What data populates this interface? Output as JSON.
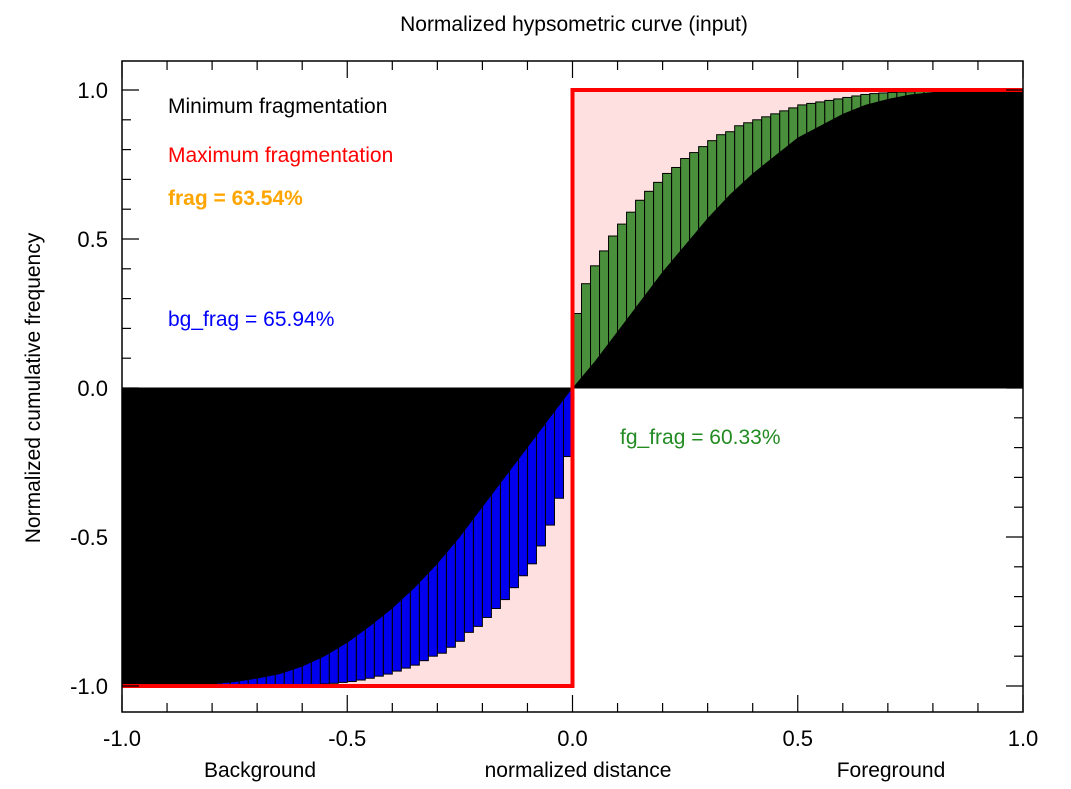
{
  "chart_data": {
    "type": "bar",
    "title": "Normalized hypsometric curve (input)",
    "xlabel": "normalized distance",
    "ylabel": "Normalized cumulative frequency",
    "x_end_labels": {
      "left": "Background",
      "right": "Foreground"
    },
    "xlim": [
      -1.0,
      1.0
    ],
    "ylim": [
      -1.0,
      1.0
    ],
    "xticks": [
      "-1.0",
      "-0.5",
      "0.0",
      "0.5",
      "1.0"
    ],
    "yticks": [
      "-1.0",
      "-0.5",
      "0.0",
      "0.5",
      "1.0"
    ],
    "grid": false,
    "legend": [
      {
        "label": "Minimum fragmentation",
        "color": "#000000"
      },
      {
        "label": "Maximum fragmentation",
        "color": "#ff0000"
      }
    ],
    "annotations": {
      "frag": {
        "text": "frag = 63.54%",
        "color": "#ffa500"
      },
      "bg_frag": {
        "text": "bg_frag = 65.94%",
        "color": "#0000ff"
      },
      "fg_frag": {
        "text": "fg_frag = 60.33%",
        "color": "#228b22"
      }
    },
    "series": [
      {
        "name": "fg",
        "color": "#4a8f3c",
        "bar_width": 0.02,
        "x": [
          0.0,
          0.02,
          0.04,
          0.06,
          0.08,
          0.1,
          0.12,
          0.14,
          0.16,
          0.18,
          0.2,
          0.22,
          0.24,
          0.26,
          0.28,
          0.3,
          0.32,
          0.34,
          0.36,
          0.38,
          0.4,
          0.42,
          0.44,
          0.46,
          0.48,
          0.5,
          0.52,
          0.54,
          0.56,
          0.58,
          0.6,
          0.62,
          0.64,
          0.66,
          0.68,
          0.7,
          0.72,
          0.74,
          0.76,
          0.78,
          0.8,
          0.82,
          0.84,
          0.86,
          0.88,
          0.9,
          0.92,
          0.94,
          0.96,
          0.98
        ],
        "values": [
          0.25,
          0.35,
          0.41,
          0.46,
          0.51,
          0.55,
          0.59,
          0.63,
          0.66,
          0.69,
          0.72,
          0.74,
          0.77,
          0.79,
          0.81,
          0.83,
          0.85,
          0.86,
          0.88,
          0.89,
          0.9,
          0.91,
          0.92,
          0.93,
          0.94,
          0.95,
          0.955,
          0.96,
          0.965,
          0.97,
          0.975,
          0.98,
          0.985,
          0.988,
          0.99,
          0.992,
          0.993,
          0.994,
          0.995,
          0.996,
          0.997,
          0.997,
          0.998,
          0.998,
          0.999,
          0.999,
          0.999,
          1.0,
          1.0,
          1.0
        ]
      },
      {
        "name": "bg",
        "color": "#0000ee",
        "bar_width": 0.02,
        "x": [
          -0.02,
          -0.04,
          -0.06,
          -0.08,
          -0.1,
          -0.12,
          -0.14,
          -0.16,
          -0.18,
          -0.2,
          -0.22,
          -0.24,
          -0.26,
          -0.28,
          -0.3,
          -0.32,
          -0.34,
          -0.36,
          -0.38,
          -0.4,
          -0.42,
          -0.44,
          -0.46,
          -0.48,
          -0.5,
          -0.52,
          -0.54,
          -0.56,
          -0.58,
          -0.6,
          -0.62,
          -0.64,
          -0.66,
          -0.68,
          -0.7,
          -0.72,
          -0.74,
          -0.76,
          -0.78,
          -0.8,
          -0.82,
          -0.84,
          -0.86,
          -0.88,
          -0.9,
          -0.92,
          -0.94,
          -0.96,
          -0.98,
          -1.0
        ],
        "values": [
          -0.23,
          -0.37,
          -0.46,
          -0.53,
          -0.59,
          -0.63,
          -0.67,
          -0.71,
          -0.74,
          -0.77,
          -0.8,
          -0.82,
          -0.85,
          -0.87,
          -0.89,
          -0.9,
          -0.915,
          -0.93,
          -0.94,
          -0.95,
          -0.96,
          -0.967,
          -0.974,
          -0.98,
          -0.985,
          -0.988,
          -0.991,
          -0.993,
          -0.995,
          -0.996,
          -0.997,
          -0.998,
          -0.998,
          -0.999,
          -0.999,
          -0.999,
          -1.0,
          -1.0,
          -1.0,
          -1.0,
          -1.0,
          -1.0,
          -1.0,
          -1.0,
          -1.0,
          -1.0,
          -1.0,
          -1.0,
          -1.0,
          -1.0
        ]
      },
      {
        "name": "minimum_fragmentation_curve",
        "color": "#000000",
        "curve_fg": {
          "x": [
            0.0,
            0.05,
            0.1,
            0.15,
            0.2,
            0.25,
            0.3,
            0.35,
            0.4,
            0.45,
            0.5,
            0.55,
            0.6,
            0.65,
            0.7,
            0.75,
            0.8,
            0.85,
            0.9,
            0.95,
            1.0
          ],
          "y": [
            0.0,
            0.09,
            0.19,
            0.29,
            0.39,
            0.48,
            0.57,
            0.65,
            0.72,
            0.78,
            0.84,
            0.88,
            0.92,
            0.95,
            0.97,
            0.985,
            0.993,
            0.997,
            0.999,
            1.0,
            1.0
          ]
        },
        "curve_bg": {
          "x": [
            0.0,
            -0.05,
            -0.1,
            -0.15,
            -0.2,
            -0.25,
            -0.3,
            -0.35,
            -0.4,
            -0.45,
            -0.5,
            -0.55,
            -0.6,
            -0.65,
            -0.7,
            -0.75,
            -0.8,
            -0.85,
            -0.9,
            -0.95,
            -1.0
          ],
          "y": [
            0.0,
            -0.1,
            -0.2,
            -0.3,
            -0.4,
            -0.5,
            -0.59,
            -0.67,
            -0.74,
            -0.8,
            -0.855,
            -0.9,
            -0.935,
            -0.96,
            -0.975,
            -0.987,
            -0.994,
            -0.998,
            -1.0,
            -1.0,
            -1.0
          ]
        }
      }
    ],
    "max_fragmentation_region_color": "#ffe0e0"
  }
}
